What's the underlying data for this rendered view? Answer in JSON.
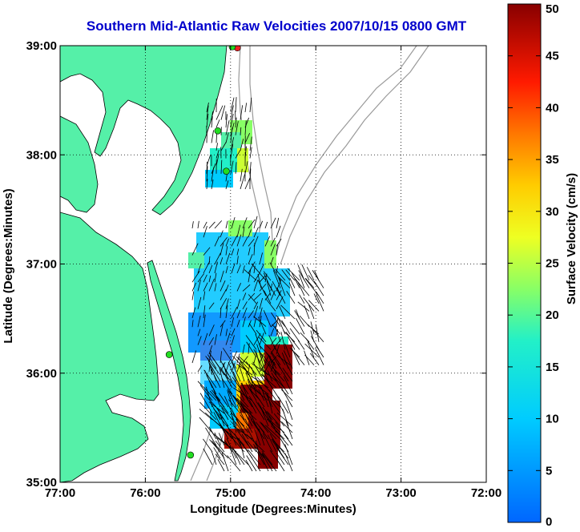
{
  "title": "Southern Mid-Atlantic Raw Velocities 2007/10/15 0800 GMT",
  "x_axis": {
    "label": "Longitude (Degrees:Minutes)",
    "ticks": [
      "77:00",
      "76:00",
      "75:00",
      "74:00",
      "73:00",
      "72:00"
    ]
  },
  "y_axis": {
    "label": "Latitude (Degrees:Minutes)",
    "ticks": [
      "39:00",
      "38:00",
      "37:00",
      "36:00",
      "35:00"
    ]
  },
  "colorbar": {
    "label": "Surface Velocity (cm/s)",
    "ticks": [
      "50",
      "45",
      "40",
      "35",
      "30",
      "25",
      "20",
      "15",
      "10",
      "5",
      "0"
    ]
  },
  "colors": {
    "title": "#0000cc",
    "land": "#55f0a8",
    "water": "#ffffff",
    "bathymetry": "#9a9a9a",
    "station": "#22dd22",
    "station_alert": "#ee2222"
  },
  "chart_data": {
    "type": "heatmap",
    "xlim": [
      -77,
      -72
    ],
    "ylim": [
      35,
      39
    ],
    "value_range": [
      0,
      50
    ],
    "grid": true,
    "legend_position": "right",
    "stations": [
      {
        "lon": -74.92,
        "lat": 38.98,
        "status": "alert"
      },
      {
        "lon": -74.98,
        "lat": 38.99,
        "status": "ok"
      },
      {
        "lon": -75.15,
        "lat": 38.22,
        "status": "ok"
      },
      {
        "lon": -75.05,
        "lat": 37.85,
        "status": "ok"
      },
      {
        "lon": -75.72,
        "lat": 36.17,
        "status": "ok"
      },
      {
        "lon": -75.47,
        "lat": 35.25,
        "status": "ok"
      }
    ]
  }
}
